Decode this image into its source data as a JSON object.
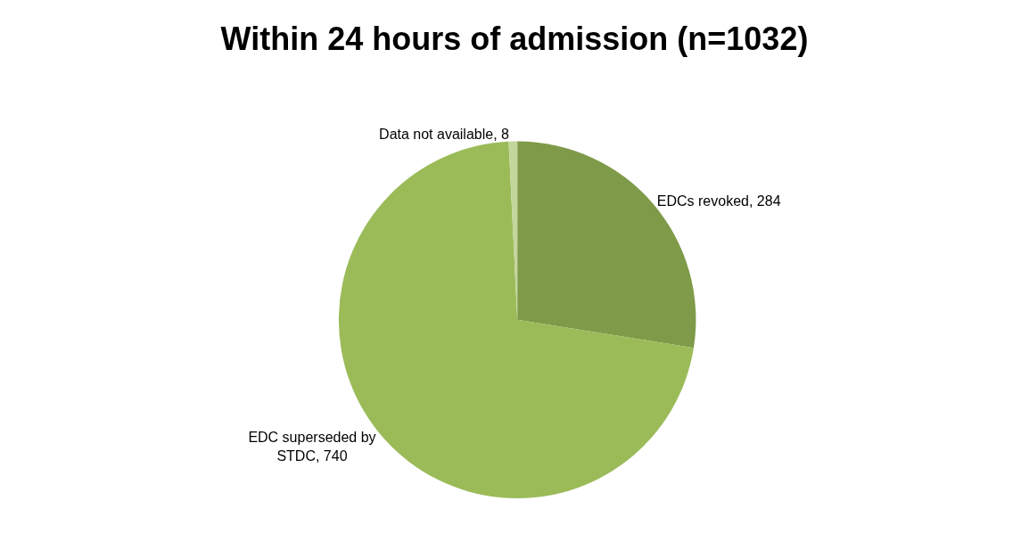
{
  "chart_data": {
    "type": "pie",
    "title": "Within 24 hours of admission (n=1032)",
    "categories": [
      "EDCs revoked, 284",
      "EDC superseded by STDC, 740",
      "Data not available, 8"
    ],
    "values": [
      284,
      740,
      8
    ],
    "colors": [
      "#7f9a48",
      "#9bbb59",
      "#c3d69b"
    ],
    "legend": false
  }
}
